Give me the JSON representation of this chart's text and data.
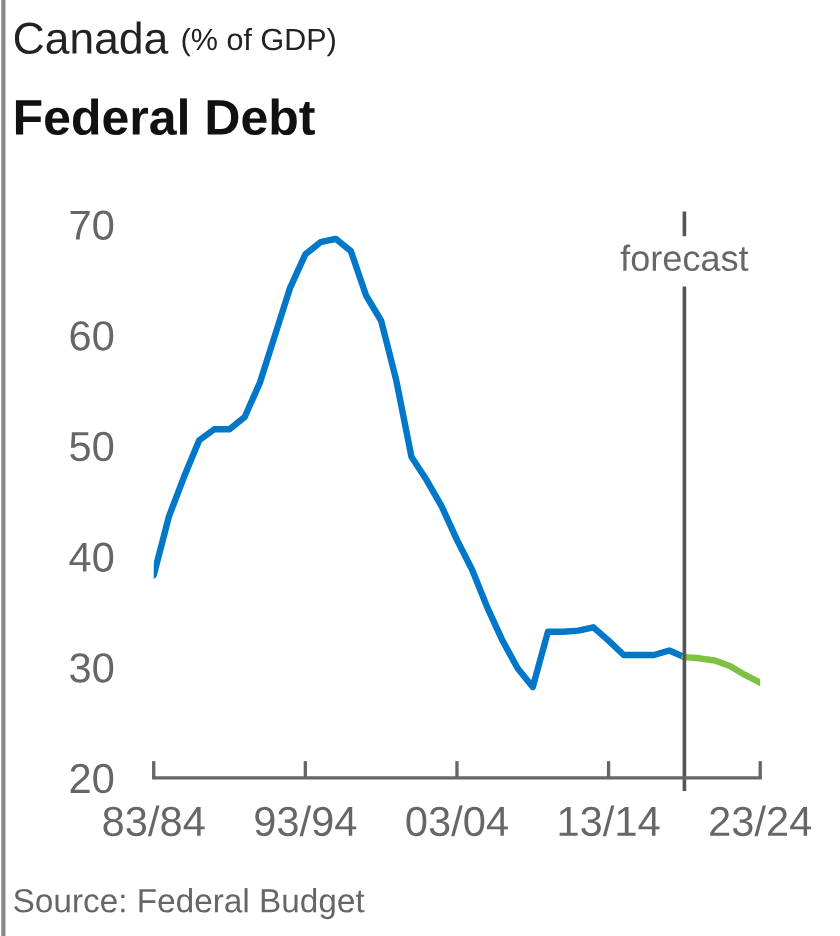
{
  "chart_data": {
    "type": "line",
    "title": "Canada",
    "subtitle": "Federal Debt",
    "annotations": [
      "(% of GDP)",
      "forecast",
      "Source: Federal Budget"
    ],
    "categories": [
      "83/84",
      null,
      null,
      null,
      null,
      null,
      null,
      null,
      null,
      null,
      "93/94",
      null,
      null,
      null,
      null,
      null,
      null,
      null,
      null,
      null,
      "03/04",
      null,
      null,
      null,
      null,
      null,
      null,
      null,
      null,
      null,
      "13/14",
      null,
      null,
      null,
      null,
      null,
      null,
      null,
      null,
      null,
      "23/24"
    ],
    "ylim": [
      20,
      71
    ],
    "yticks": [
      20,
      30,
      40,
      50,
      60,
      70
    ],
    "legend": false,
    "marker": "none",
    "line_style": "solid",
    "series": [
      {
        "color": "#0077c8",
        "values": [
          38.3,
          43.6,
          47.2,
          50.5,
          51.5,
          51.5,
          52.6,
          55.7,
          60.0,
          64.3,
          67.3,
          68.4,
          68.7,
          67.6,
          63.6,
          61.3,
          55.9,
          49.0,
          46.9,
          44.5,
          41.5,
          38.8,
          35.4,
          32.4,
          29.9,
          28.2,
          33.2,
          33.2,
          33.3,
          33.6,
          32.4,
          31.1,
          31.1,
          31.1,
          31.5,
          30.9,
          null,
          null,
          null,
          null,
          null
        ]
      },
      {
        "color": "#7dc242",
        "values": [
          null,
          null,
          null,
          null,
          null,
          null,
          null,
          null,
          null,
          null,
          null,
          null,
          null,
          null,
          null,
          null,
          null,
          null,
          null,
          null,
          null,
          null,
          null,
          null,
          null,
          null,
          null,
          null,
          null,
          null,
          null,
          null,
          null,
          null,
          null,
          30.9,
          30.8,
          30.6,
          30.1,
          29.3,
          28.6
        ]
      }
    ]
  }
}
